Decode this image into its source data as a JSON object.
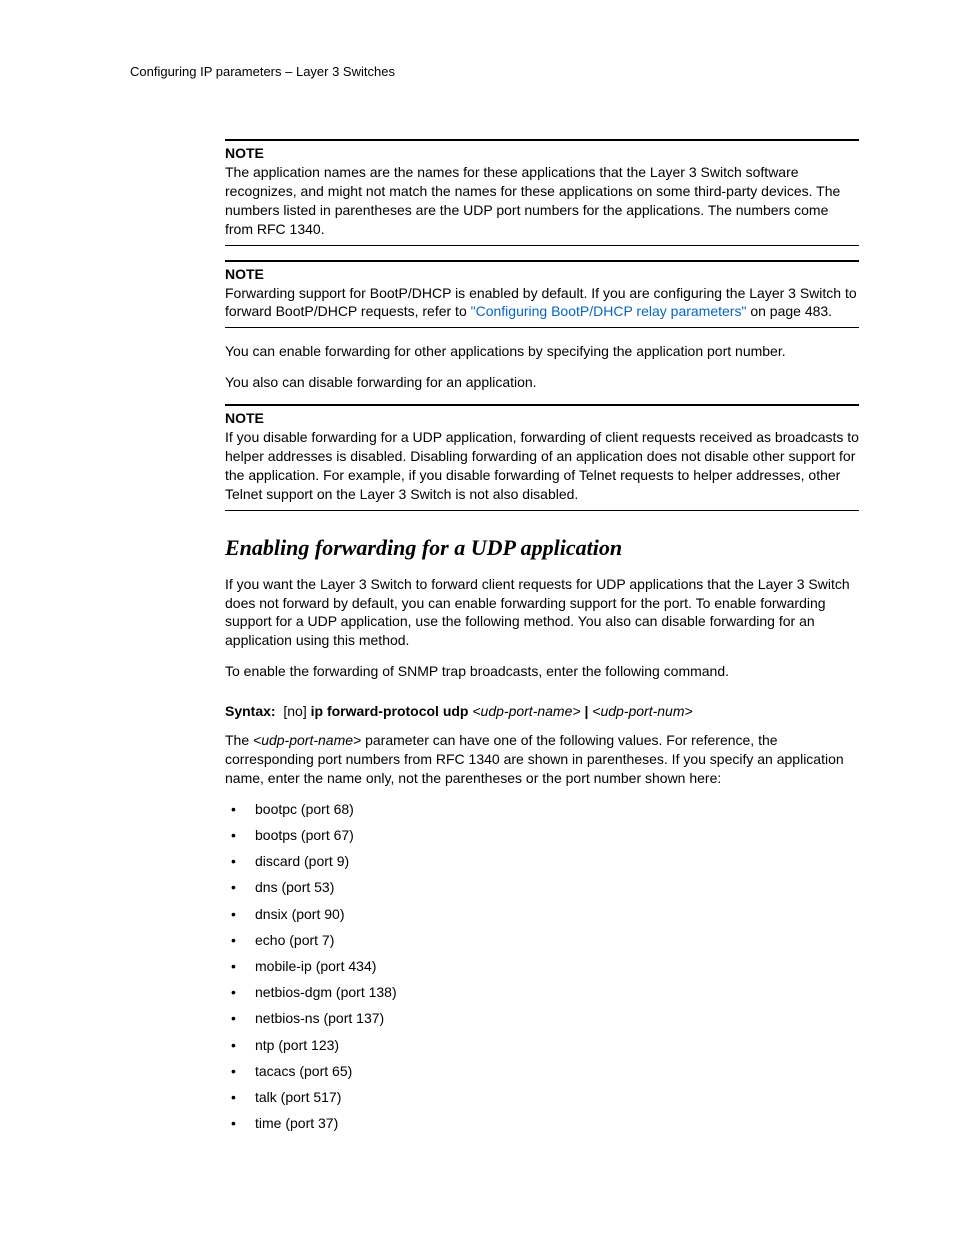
{
  "runningHead": "Configuring IP parameters – Layer 3 Switches",
  "notes": {
    "label": "NOTE",
    "note1": "The application names are the names for these applications that the Layer 3 Switch software recognizes, and might not match the names for these applications on some third-party devices.  The numbers listed in parentheses are the UDP port numbers for the applications.  The numbers come from RFC 1340.",
    "note2_pre": "Forwarding support for BootP/DHCP is enabled by default.  If you are configuring the Layer 3 Switch to forward BootP/DHCP requests, refer to ",
    "note2_link": "\"Configuring BootP/DHCP relay parameters\"",
    "note2_post": " on page 483.",
    "note3": "If you disable forwarding for a UDP application, forwarding of client requests received as broadcasts to helper addresses is disabled.  Disabling forwarding of an application does not disable other support for the application.  For example, if you disable forwarding of Telnet requests to helper addresses, other Telnet support on the Layer 3 Switch is not also disabled."
  },
  "paras": {
    "p1": "You can enable forwarding for other applications by specifying the application port number.",
    "p2": "You also can disable forwarding for an application.",
    "p3": "If you want the Layer 3 Switch to forward client requests for UDP applications that the Layer 3 Switch does not forward by default, you can enable forwarding support for the port.  To enable forwarding support for a UDP application, use the following method.  You also can disable forwarding for an application using this method.",
    "p4": "To enable the forwarding of SNMP trap broadcasts, enter the following command.",
    "p5_pre": "The ",
    "p5_ital": "<udp-port-name>",
    "p5_post": " parameter can have one of the following values.  For reference, the corresponding port numbers from RFC 1340 are shown in parentheses.  If you specify an application name, enter the name only, not the parentheses or the port number shown here:"
  },
  "heading": "Enabling forwarding for a UDP application",
  "syntax": {
    "label": "Syntax:",
    "no": "[no]",
    "cmd": "ip forward-protocol udp",
    "arg1": "<udp-port-name>",
    "sep": "|",
    "arg2": "<udp-port-num>"
  },
  "bullets": [
    "bootpc (port 68)",
    "bootps (port 67)",
    "discard (port 9)",
    "dns (port 53)",
    "dnsix (port 90)",
    "echo (port 7)",
    "mobile-ip (port 434)",
    "netbios-dgm (port 138)",
    "netbios-ns (port 137)",
    "ntp (port 123)",
    "tacacs (port 65)",
    "talk (port 517)",
    "time (port 37)"
  ],
  "colors": {
    "link": "#0066cc",
    "text": "#000000",
    "background": "#ffffff"
  }
}
